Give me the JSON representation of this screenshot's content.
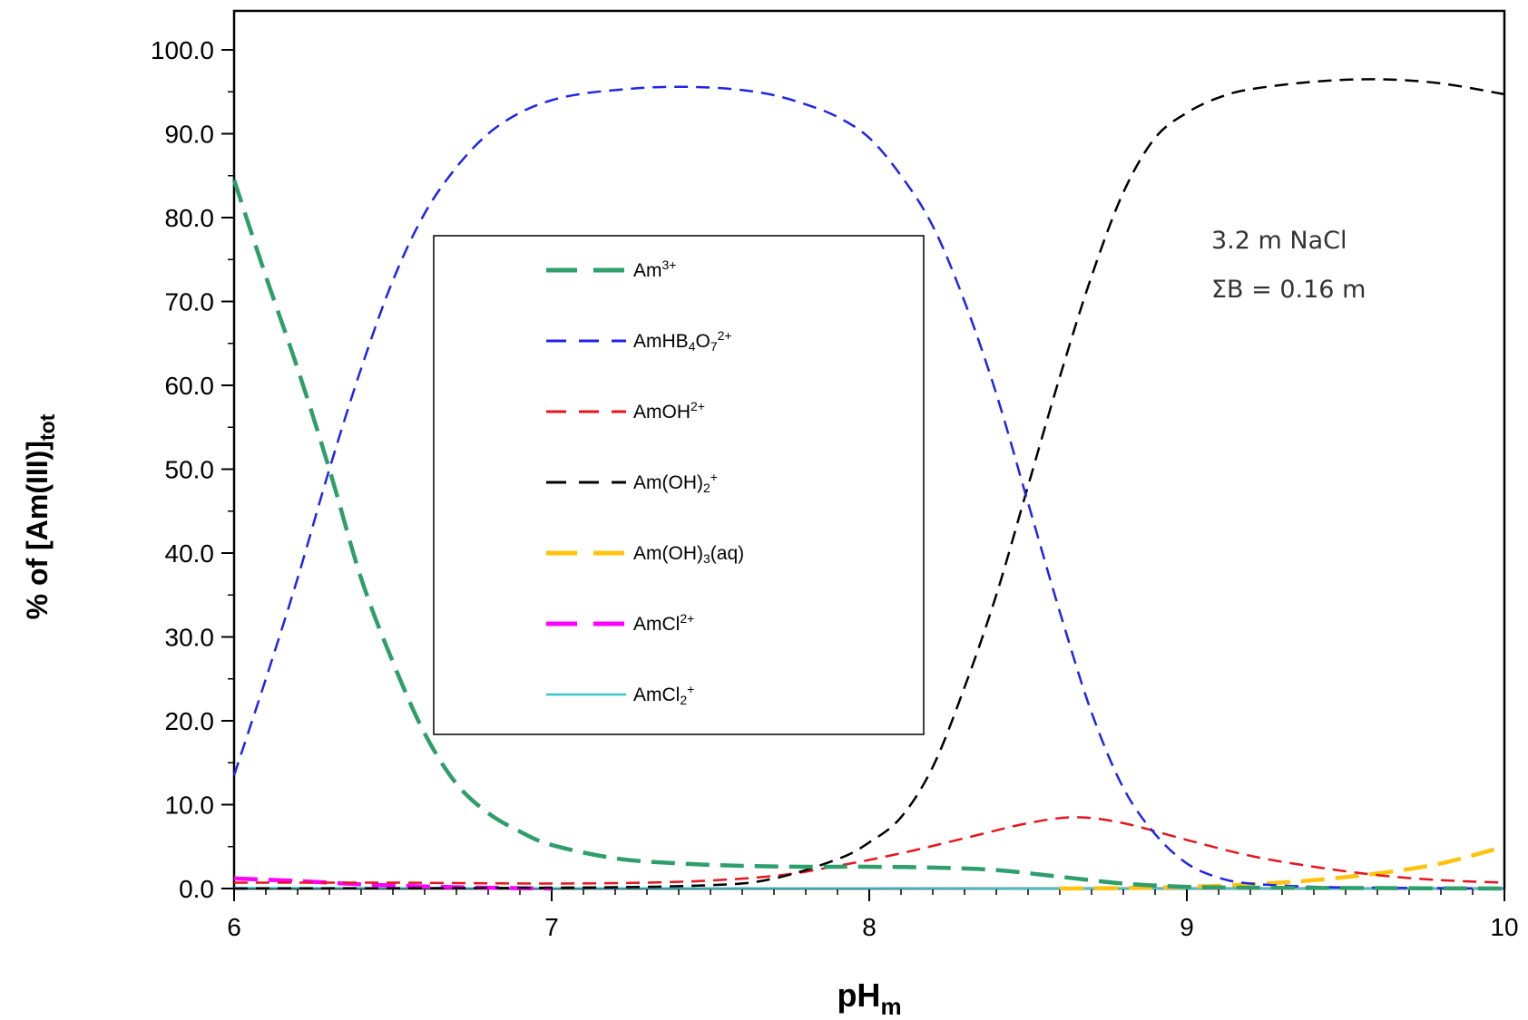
{
  "chart_data": {
    "type": "line",
    "xlabel": "pH",
    "xlabel_sub": "m",
    "ylabel": "% of [Am(III)]",
    "ylabel_sub": "tot",
    "xlim": [
      6,
      10
    ],
    "ylim": [
      0,
      105
    ],
    "xticks": [
      "6",
      "7",
      "8",
      "9",
      "10"
    ],
    "yticks": [
      "0.0",
      "10.0",
      "20.0",
      "30.0",
      "40.0",
      "50.0",
      "60.0",
      "70.0",
      "80.0",
      "90.0",
      "100.0"
    ],
    "annotation": [
      "3.2 m NaCl",
      "ΣB = 0.16 m"
    ],
    "legend_position": "center-left",
    "series": [
      {
        "name": "Am3+",
        "name_base": "Am",
        "name_sup": "3+",
        "color": "#2E9E6B",
        "dash": "long",
        "x": [
          6.0,
          6.1,
          6.2,
          6.3,
          6.4,
          6.5,
          6.6,
          6.7,
          6.8,
          6.9,
          7.0,
          7.2,
          7.4,
          7.6,
          7.8,
          8.0,
          8.2,
          8.4,
          8.6,
          8.8,
          9.0,
          9.2,
          9.6,
          10.0
        ],
        "y": [
          84.5,
          73,
          62,
          50,
          37,
          27,
          18.5,
          12.5,
          9,
          6.8,
          5.2,
          3.6,
          3.0,
          2.7,
          2.6,
          2.6,
          2.5,
          2.2,
          1.4,
          0.6,
          0.2,
          0.1,
          0.05,
          0.0
        ]
      },
      {
        "name": "AmHB4O72+",
        "name_base": "AmHB",
        "name_sub": "4",
        "name_base2": "O",
        "name_sub2": "7",
        "name_sup": "2+",
        "color": "#1F24E8",
        "dash": "medium",
        "x": [
          6.0,
          6.1,
          6.2,
          6.3,
          6.4,
          6.5,
          6.6,
          6.7,
          6.8,
          6.9,
          7.0,
          7.1,
          7.2,
          7.3,
          7.4,
          7.5,
          7.6,
          7.7,
          7.8,
          7.9,
          8.0,
          8.1,
          8.2,
          8.3,
          8.4,
          8.5,
          8.6,
          8.7,
          8.8,
          8.9,
          9.0,
          9.1,
          9.2,
          9.4,
          9.6,
          10.0
        ],
        "y": [
          13.5,
          25,
          37,
          50,
          62,
          72.5,
          80.5,
          86,
          90,
          92.5,
          94,
          94.8,
          95.2,
          95.5,
          95.6,
          95.5,
          95.2,
          94.6,
          93.5,
          92,
          89.5,
          85,
          79,
          70,
          59,
          46,
          33,
          21,
          12,
          6.5,
          3,
          1.3,
          0.6,
          0.2,
          0.1,
          0.0
        ]
      },
      {
        "name": "AmOH2+",
        "name_base": "AmOH",
        "name_sup": "2+",
        "color": "#E8141C",
        "dash": "medium",
        "x": [
          6.0,
          6.5,
          7.0,
          7.4,
          7.7,
          7.9,
          8.1,
          8.3,
          8.5,
          8.65,
          8.8,
          9.0,
          9.2,
          9.4,
          9.6,
          9.8,
          10.0
        ],
        "y": [
          0.7,
          0.7,
          0.6,
          0.8,
          1.5,
          2.7,
          4.2,
          6.0,
          7.8,
          8.5,
          7.8,
          5.8,
          3.9,
          2.6,
          1.6,
          1.0,
          0.7
        ]
      },
      {
        "name": "Am(OH)2+",
        "name_base": "Am(OH)",
        "name_sub": "2",
        "name_sup": "+",
        "color": "#000000",
        "dash": "medium",
        "x": [
          6.0,
          7.0,
          7.5,
          7.7,
          7.9,
          8.0,
          8.1,
          8.2,
          8.3,
          8.4,
          8.5,
          8.6,
          8.7,
          8.8,
          8.9,
          9.0,
          9.1,
          9.2,
          9.4,
          9.6,
          9.8,
          10.0
        ],
        "y": [
          0.0,
          0.1,
          0.4,
          1.2,
          3.5,
          5.5,
          8.5,
          14.5,
          24,
          35,
          48,
          61,
          73,
          83,
          89.5,
          92.5,
          94.3,
          95.3,
          96.2,
          96.5,
          96.0,
          94.7
        ]
      },
      {
        "name": "Am(OH)3(aq)",
        "name_base": "Am(OH)",
        "name_sub": "3",
        "name_base2": "(aq)",
        "color": "#FFC20E",
        "dash": "long",
        "x": [
          8.6,
          8.8,
          9.0,
          9.2,
          9.4,
          9.6,
          9.8,
          10.0
        ],
        "y": [
          0.0,
          0.05,
          0.2,
          0.5,
          1.0,
          1.8,
          3.0,
          5.0
        ]
      },
      {
        "name": "AmCl2+",
        "name_base": "AmCl",
        "name_sup": "2+",
        "color": "#FF00FF",
        "dash": "long",
        "x": [
          6.0,
          6.2,
          6.4,
          6.6,
          6.8,
          7.0
        ],
        "y": [
          1.2,
          0.9,
          0.5,
          0.25,
          0.1,
          0.0
        ]
      },
      {
        "name": "AmCl2+",
        "name_base": "AmCl",
        "name_sub": "2",
        "name_sup": "+",
        "color": "#3BC3C9",
        "dash": "solid",
        "x": [
          6.0,
          7.0,
          8.0,
          9.0,
          10.0
        ],
        "y": [
          0.1,
          0.05,
          0.02,
          0.0,
          0.0
        ]
      }
    ]
  }
}
